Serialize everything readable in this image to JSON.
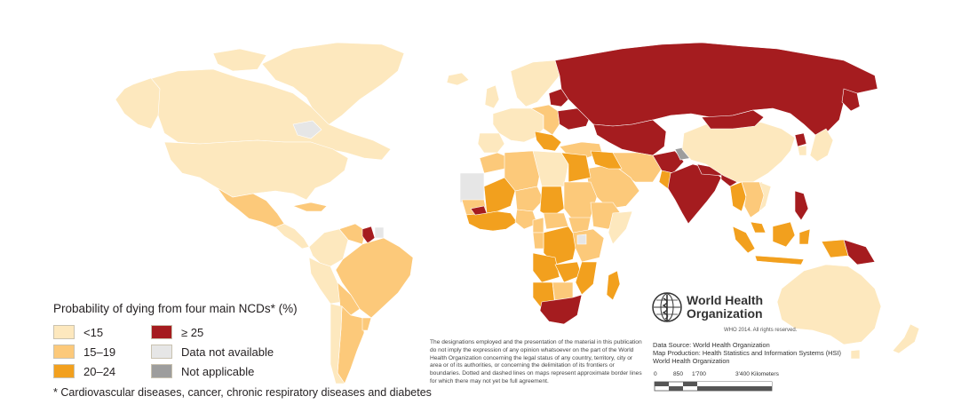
{
  "legend": {
    "title": "Probability of dying from four main NCDs* (%)",
    "items": [
      {
        "label": "<15",
        "color": "#fde8be"
      },
      {
        "label": "≥ 25",
        "color": "#a51c1f"
      },
      {
        "label": "15–19",
        "color": "#fcc97a"
      },
      {
        "label": "Data not available",
        "color": "#e6e6e6"
      },
      {
        "label": "20–24",
        "color": "#f2a01e"
      },
      {
        "label": "Not applicable",
        "color": "#9d9d9d"
      }
    ],
    "footnote": "* Cardiovascular diseases, cancer, chronic respiratory diseases and diabetes"
  },
  "disclaimer": "The designations employed and the presentation of the material in this publication do not imply the expression of any opinion whatsoever on the part of the World Health Organization concerning the legal status of any country, territory, city or area or of its authorities, or concerning the delimitation of its frontiers or boundaries. Dotted and dashed lines on maps represent approximate border lines for which there may not yet be full agreement.",
  "who": {
    "name_line1": "World Health",
    "name_line2": "Organization",
    "copyright": "WHO 2014. All rights reserved."
  },
  "credits": {
    "source": "Data Source: World Health Organization",
    "production": "Map Production: Health Statistics and Information Systems (HSI)",
    "org": "World Health Organization"
  },
  "scale": {
    "labels": [
      "0",
      "850",
      "1'700",
      "3'400 Kilometers"
    ]
  },
  "colors": {
    "lt15": "#fde8be",
    "r15_19": "#fcc97a",
    "r20_24": "#f2a01e",
    "ge25": "#a51c1f",
    "na": "#e6e6e6",
    "notapp": "#9d9d9d",
    "border": "#ffffff",
    "outline": "#c9b98f"
  }
}
